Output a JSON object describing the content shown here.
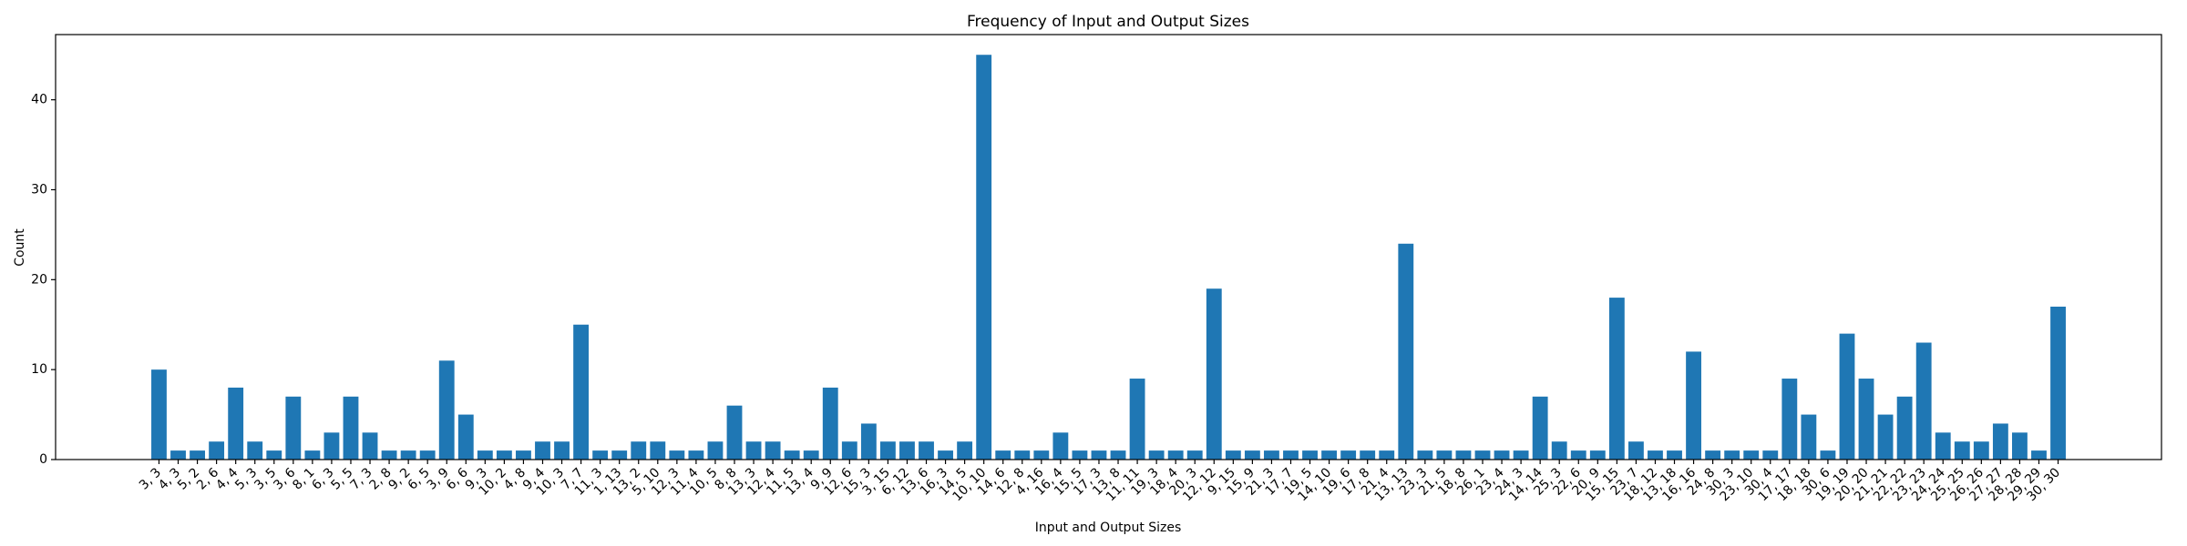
{
  "chart_data": {
    "type": "bar",
    "title": "Frequency of Input and Output Sizes",
    "x_label": "Input and Output Sizes",
    "y_label": "Count",
    "color": "#1f77b4",
    "categories": [
      "3, 3",
      "4, 3",
      "5, 2",
      "2, 6",
      "4, 4",
      "5, 3",
      "3, 5",
      "3, 6",
      "8, 1",
      "6, 3",
      "5, 5",
      "7, 3",
      "2, 8",
      "9, 2",
      "6, 5",
      "3, 9",
      "6, 6",
      "9, 3",
      "10, 2",
      "4, 8",
      "9, 4",
      "10, 3",
      "7, 7",
      "11, 3",
      "1, 13",
      "13, 2",
      "5, 10",
      "12, 3",
      "11, 4",
      "10, 5",
      "8, 8",
      "13, 3",
      "12, 4",
      "11, 5",
      "13, 4",
      "9, 9",
      "12, 6",
      "15, 3",
      "3, 15",
      "6, 12",
      "13, 6",
      "16, 3",
      "14, 5",
      "10, 10",
      "14, 6",
      "12, 8",
      "4, 16",
      "16, 4",
      "15, 5",
      "17, 3",
      "13, 8",
      "11, 11",
      "19, 3",
      "18, 4",
      "20, 3",
      "12, 12",
      "9, 15",
      "15, 9",
      "21, 3",
      "17, 7",
      "19, 5",
      "14, 10",
      "19, 6",
      "17, 8",
      "21, 4",
      "13, 13",
      "23, 3",
      "21, 5",
      "18, 8",
      "26, 1",
      "23, 4",
      "24, 3",
      "14, 14",
      "25, 3",
      "22, 6",
      "20, 9",
      "15, 15",
      "23, 7",
      "18, 12",
      "13, 18",
      "16, 16",
      "24, 8",
      "30, 3",
      "23, 10",
      "30, 4",
      "17, 17",
      "18, 18",
      "30, 6",
      "19, 19",
      "20, 20",
      "21, 21",
      "22, 22",
      "23, 23",
      "24, 24",
      "25, 25",
      "26, 26",
      "27, 27",
      "28, 28",
      "29, 29",
      "30, 30"
    ],
    "values": [
      10,
      1,
      1,
      2,
      8,
      2,
      1,
      7,
      1,
      3,
      7,
      3,
      1,
      1,
      1,
      11,
      5,
      1,
      1,
      1,
      2,
      2,
      15,
      1,
      1,
      2,
      2,
      1,
      1,
      2,
      6,
      2,
      2,
      1,
      1,
      8,
      2,
      4,
      2,
      2,
      2,
      1,
      2,
      45,
      1,
      1,
      1,
      3,
      1,
      1,
      1,
      9,
      1,
      1,
      1,
      19,
      1,
      1,
      1,
      1,
      1,
      1,
      1,
      1,
      1,
      24,
      1,
      1,
      1,
      1,
      1,
      1,
      7,
      2,
      1,
      1,
      18,
      2,
      1,
      1,
      12,
      1,
      1,
      1,
      1,
      9,
      5,
      1,
      14,
      9,
      5,
      7,
      13,
      3,
      2,
      2,
      4,
      3,
      1,
      17
    ],
    "ylim": [
      0,
      47.25
    ],
    "yticks": [
      0,
      10,
      20,
      30,
      40
    ]
  }
}
